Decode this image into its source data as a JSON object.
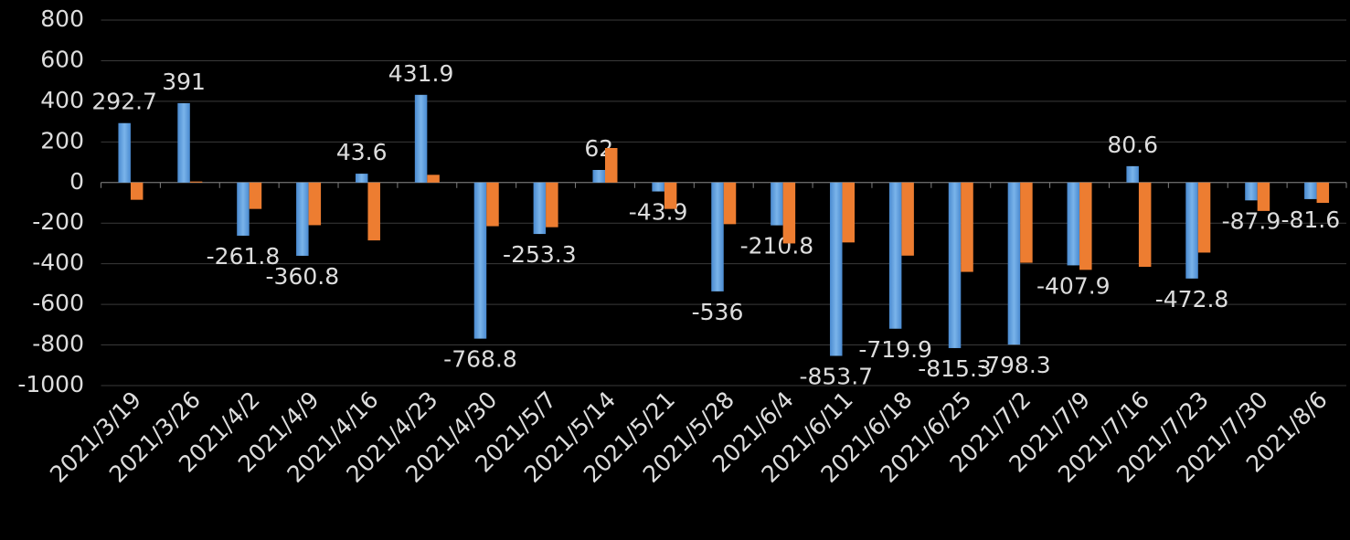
{
  "chart_data": {
    "type": "bar",
    "categories": [
      "2021/3/19",
      "2021/3/26",
      "2021/4/2",
      "2021/4/9",
      "2021/4/16",
      "2021/4/23",
      "2021/4/30",
      "2021/5/7",
      "2021/5/14",
      "2021/5/21",
      "2021/5/28",
      "2021/6/4",
      "2021/6/11",
      "2021/6/18",
      "2021/6/25",
      "2021/7/2",
      "2021/7/9",
      "2021/7/16",
      "2021/7/23",
      "2021/7/30",
      "2021/8/6"
    ],
    "series": [
      {
        "color": "#5b9bd5",
        "show_labels": true,
        "values": [
          292.7,
          391,
          -261.8,
          -360.8,
          43.6,
          431.9,
          -768.8,
          -253.3,
          62,
          -43.9,
          -536,
          -210.8,
          -853.7,
          -719.9,
          -815.3,
          -798.3,
          -407.9,
          80.6,
          -472.8,
          -87.9,
          -81.6
        ]
      },
      {
        "color": "#ed7d31",
        "show_labels": false,
        "values": [
          -85,
          5,
          -130,
          -210,
          -285,
          38,
          -215,
          -220,
          170,
          -130,
          -205,
          -300,
          -295,
          -360,
          -440,
          -395,
          -430,
          -415,
          -345,
          -140,
          -100
        ]
      }
    ],
    "ylim": [
      -1000,
      800
    ],
    "yticks": [
      -1000,
      -800,
      -600,
      -400,
      -200,
      0,
      200,
      400,
      600,
      800
    ],
    "grid": true
  }
}
